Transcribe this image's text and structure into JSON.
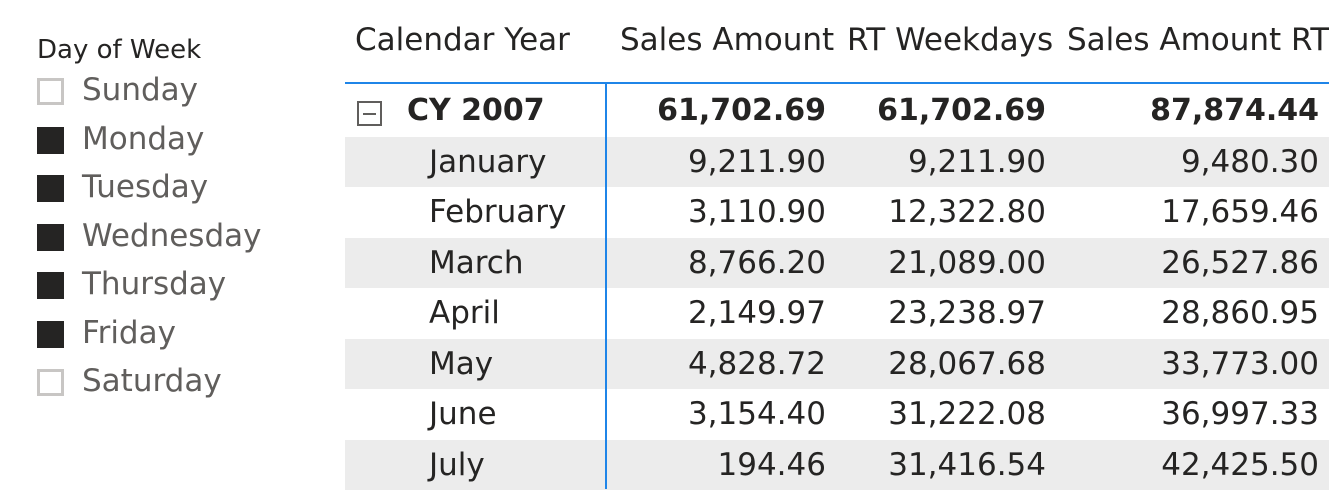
{
  "slicer": {
    "title": "Day of Week",
    "items": [
      {
        "label": "Sunday",
        "checked": false
      },
      {
        "label": "Monday",
        "checked": true
      },
      {
        "label": "Tuesday",
        "checked": true
      },
      {
        "label": "Wednesday",
        "checked": true
      },
      {
        "label": "Thursday",
        "checked": true
      },
      {
        "label": "Friday",
        "checked": true
      },
      {
        "label": "Saturday",
        "checked": false
      }
    ]
  },
  "matrix": {
    "columns": [
      "Calendar Year",
      "Sales Amount",
      "RT Weekdays",
      "Sales Amount RT"
    ],
    "total": {
      "label": "CY 2007",
      "values": [
        "61,702.69",
        "61,702.69",
        "87,874.44"
      ],
      "expanded": true
    },
    "rows": [
      {
        "label": "January",
        "values": [
          "9,211.90",
          "9,211.90",
          "9,480.30"
        ]
      },
      {
        "label": "February",
        "values": [
          "3,110.90",
          "12,322.80",
          "17,659.46"
        ]
      },
      {
        "label": "March",
        "values": [
          "8,766.20",
          "21,089.00",
          "26,527.86"
        ]
      },
      {
        "label": "April",
        "values": [
          "2,149.97",
          "23,238.97",
          "28,860.95"
        ]
      },
      {
        "label": "May",
        "values": [
          "4,828.72",
          "28,067.68",
          "33,773.00"
        ]
      },
      {
        "label": "June",
        "values": [
          "3,154.40",
          "31,222.08",
          "36,997.33"
        ]
      },
      {
        "label": "July",
        "values": [
          "194.46",
          "31,416.54",
          "42,425.50"
        ]
      }
    ]
  },
  "colors": {
    "accent": "#1f85e8",
    "band": "#ececec",
    "checked": "#252423",
    "unchecked_border": "#c8c6c4"
  }
}
